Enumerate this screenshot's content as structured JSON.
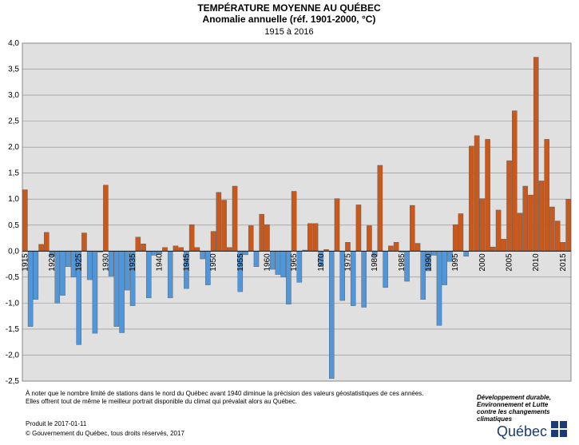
{
  "chart_data": {
    "type": "bar",
    "title": "TEMPÉRATURE MOYENNE AU QUÉBEC",
    "subtitle": "Anomalie annuelle (réf. 1901-2000, °C)",
    "period": "1915 à 2016",
    "categories": [
      "1915",
      null,
      null,
      null,
      null,
      "1920",
      null,
      null,
      null,
      null,
      "1925",
      null,
      null,
      null,
      null,
      "1930",
      null,
      null,
      null,
      null,
      "1935",
      null,
      null,
      null,
      null,
      "1940",
      null,
      null,
      null,
      null,
      "1945",
      null,
      null,
      null,
      null,
      "1950",
      null,
      null,
      null,
      null,
      "1955",
      null,
      null,
      null,
      null,
      "1960",
      null,
      null,
      null,
      null,
      "1965",
      null,
      null,
      null,
      null,
      "1970",
      null,
      null,
      null,
      null,
      "1975",
      null,
      null,
      null,
      null,
      "1980",
      null,
      null,
      null,
      null,
      "1985",
      null,
      null,
      null,
      null,
      "1990",
      null,
      null,
      null,
      null,
      "1995",
      null,
      null,
      null,
      null,
      "2000",
      null,
      null,
      null,
      null,
      "2005",
      null,
      null,
      null,
      null,
      "2010",
      null,
      null,
      null,
      null,
      "2015",
      null
    ],
    "values": [
      1.18,
      -1.45,
      -0.93,
      0.13,
      0.36,
      -0.1,
      -1.0,
      -0.85,
      -0.3,
      -0.5,
      -1.8,
      0.35,
      -0.55,
      -1.58,
      -0.02,
      1.27,
      -0.48,
      -1.45,
      -1.57,
      -0.75,
      -1.05,
      0.27,
      0.14,
      -0.9,
      -0.08,
      -0.05,
      0.07,
      -0.9,
      0.1,
      0.07,
      -0.72,
      0.51,
      0.07,
      -0.15,
      -0.65,
      0.38,
      1.13,
      0.98,
      0.07,
      1.25,
      -0.78,
      -0.07,
      0.49,
      -0.3,
      0.71,
      0.51,
      -0.35,
      -0.45,
      -0.5,
      -1.02,
      1.15,
      -0.6,
      0.02,
      0.53,
      0.53,
      -0.3,
      0.03,
      -2.45,
      1.01,
      -0.95,
      0.17,
      -1.05,
      0.89,
      -1.08,
      0.49,
      -0.1,
      1.65,
      -0.7,
      0.1,
      0.17,
      -0.02,
      -0.58,
      0.88,
      0.15,
      -0.93,
      -0.38,
      -0.08,
      -1.43,
      -0.65,
      -0.2,
      0.51,
      0.72,
      -0.1,
      2.02,
      2.22,
      1.01,
      2.15,
      0.08,
      0.79,
      0.23,
      1.74,
      2.7,
      0.73,
      1.25,
      1.08,
      3.73,
      1.35,
      2.15,
      0.85,
      0.58,
      0.17,
      1.0
    ],
    "positive_color": "#c8581c",
    "negative_color": "#5096d8",
    "ylim": [
      -2.5,
      4.0
    ],
    "yticks": [
      {
        "value": -2.5,
        "label": "-2,5"
      },
      {
        "value": -2.0,
        "label": "-2,0"
      },
      {
        "value": -1.5,
        "label": "-1,5"
      },
      {
        "value": -1.0,
        "label": "-1,0"
      },
      {
        "value": -0.5,
        "label": "-0,5"
      },
      {
        "value": 0,
        "label": "0,0"
      },
      {
        "value": 0.5,
        "label": "0,5"
      },
      {
        "value": 1.0,
        "label": "1,0"
      },
      {
        "value": 1.5,
        "label": "1,5"
      },
      {
        "value": 2.0,
        "label": "2,0"
      },
      {
        "value": 2.5,
        "label": "2,5"
      },
      {
        "value": 3.0,
        "label": "3,0"
      },
      {
        "value": 3.5,
        "label": "3,5"
      },
      {
        "value": 4.0,
        "label": "4,0"
      }
    ],
    "grid": true,
    "notes": [
      "À noter que le nombre limité de stations dans le nord du Québec avant 1940 diminue la précision des valeurs géostatistiques de ces années.",
      "Elles offrent tout de même le meilleur portrait disponible du climat qui prévalait alors au Québec."
    ],
    "produced": "Produit le 2017-01-11",
    "copyright": "© Gouvernement du Québec, tous droits réservés, 2017",
    "ministry": [
      "Développement durable,",
      "Environnement et Lutte",
      "contre les changements",
      "climatiques"
    ],
    "brand": "Québec"
  }
}
